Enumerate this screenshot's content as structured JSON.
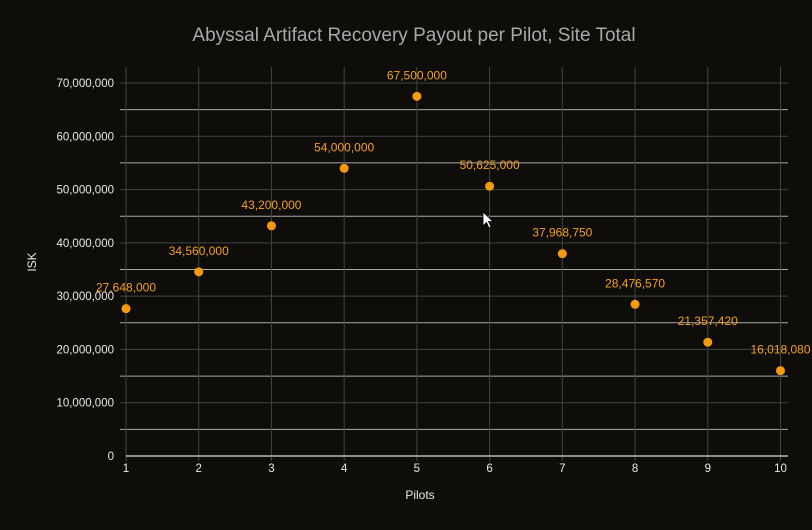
{
  "chart_data": {
    "type": "scatter",
    "title": "Abyssal Artifact Recovery Payout per Pilot, Site Total",
    "xlabel": "Pilots",
    "ylabel": "ISK",
    "x": [
      1,
      2,
      3,
      4,
      5,
      6,
      7,
      8,
      9,
      10
    ],
    "y": [
      27648000,
      34560000,
      43200000,
      54000000,
      67500000,
      50625000,
      37968750,
      28476570,
      21357420,
      16018080
    ],
    "data_labels": [
      "27,648,000",
      "34,560,000",
      "43,200,000",
      "54,000,000",
      "67,500,000",
      "50,625,000",
      "37,968,750",
      "28,476,570",
      "21,357,420",
      "16,018,080"
    ],
    "xticks": [
      "1",
      "2",
      "3",
      "4",
      "5",
      "6",
      "7",
      "8",
      "9",
      "10"
    ],
    "yticks": [
      "0",
      "10,000,000",
      "20,000,000",
      "30,000,000",
      "40,000,000",
      "50,000,000",
      "60,000,000",
      "70,000,000"
    ],
    "xlim": [
      1,
      10
    ],
    "ylim": [
      0,
      73000000
    ],
    "grid": true,
    "marker_color": "#f59a0c",
    "label_color": "#f5a020"
  }
}
